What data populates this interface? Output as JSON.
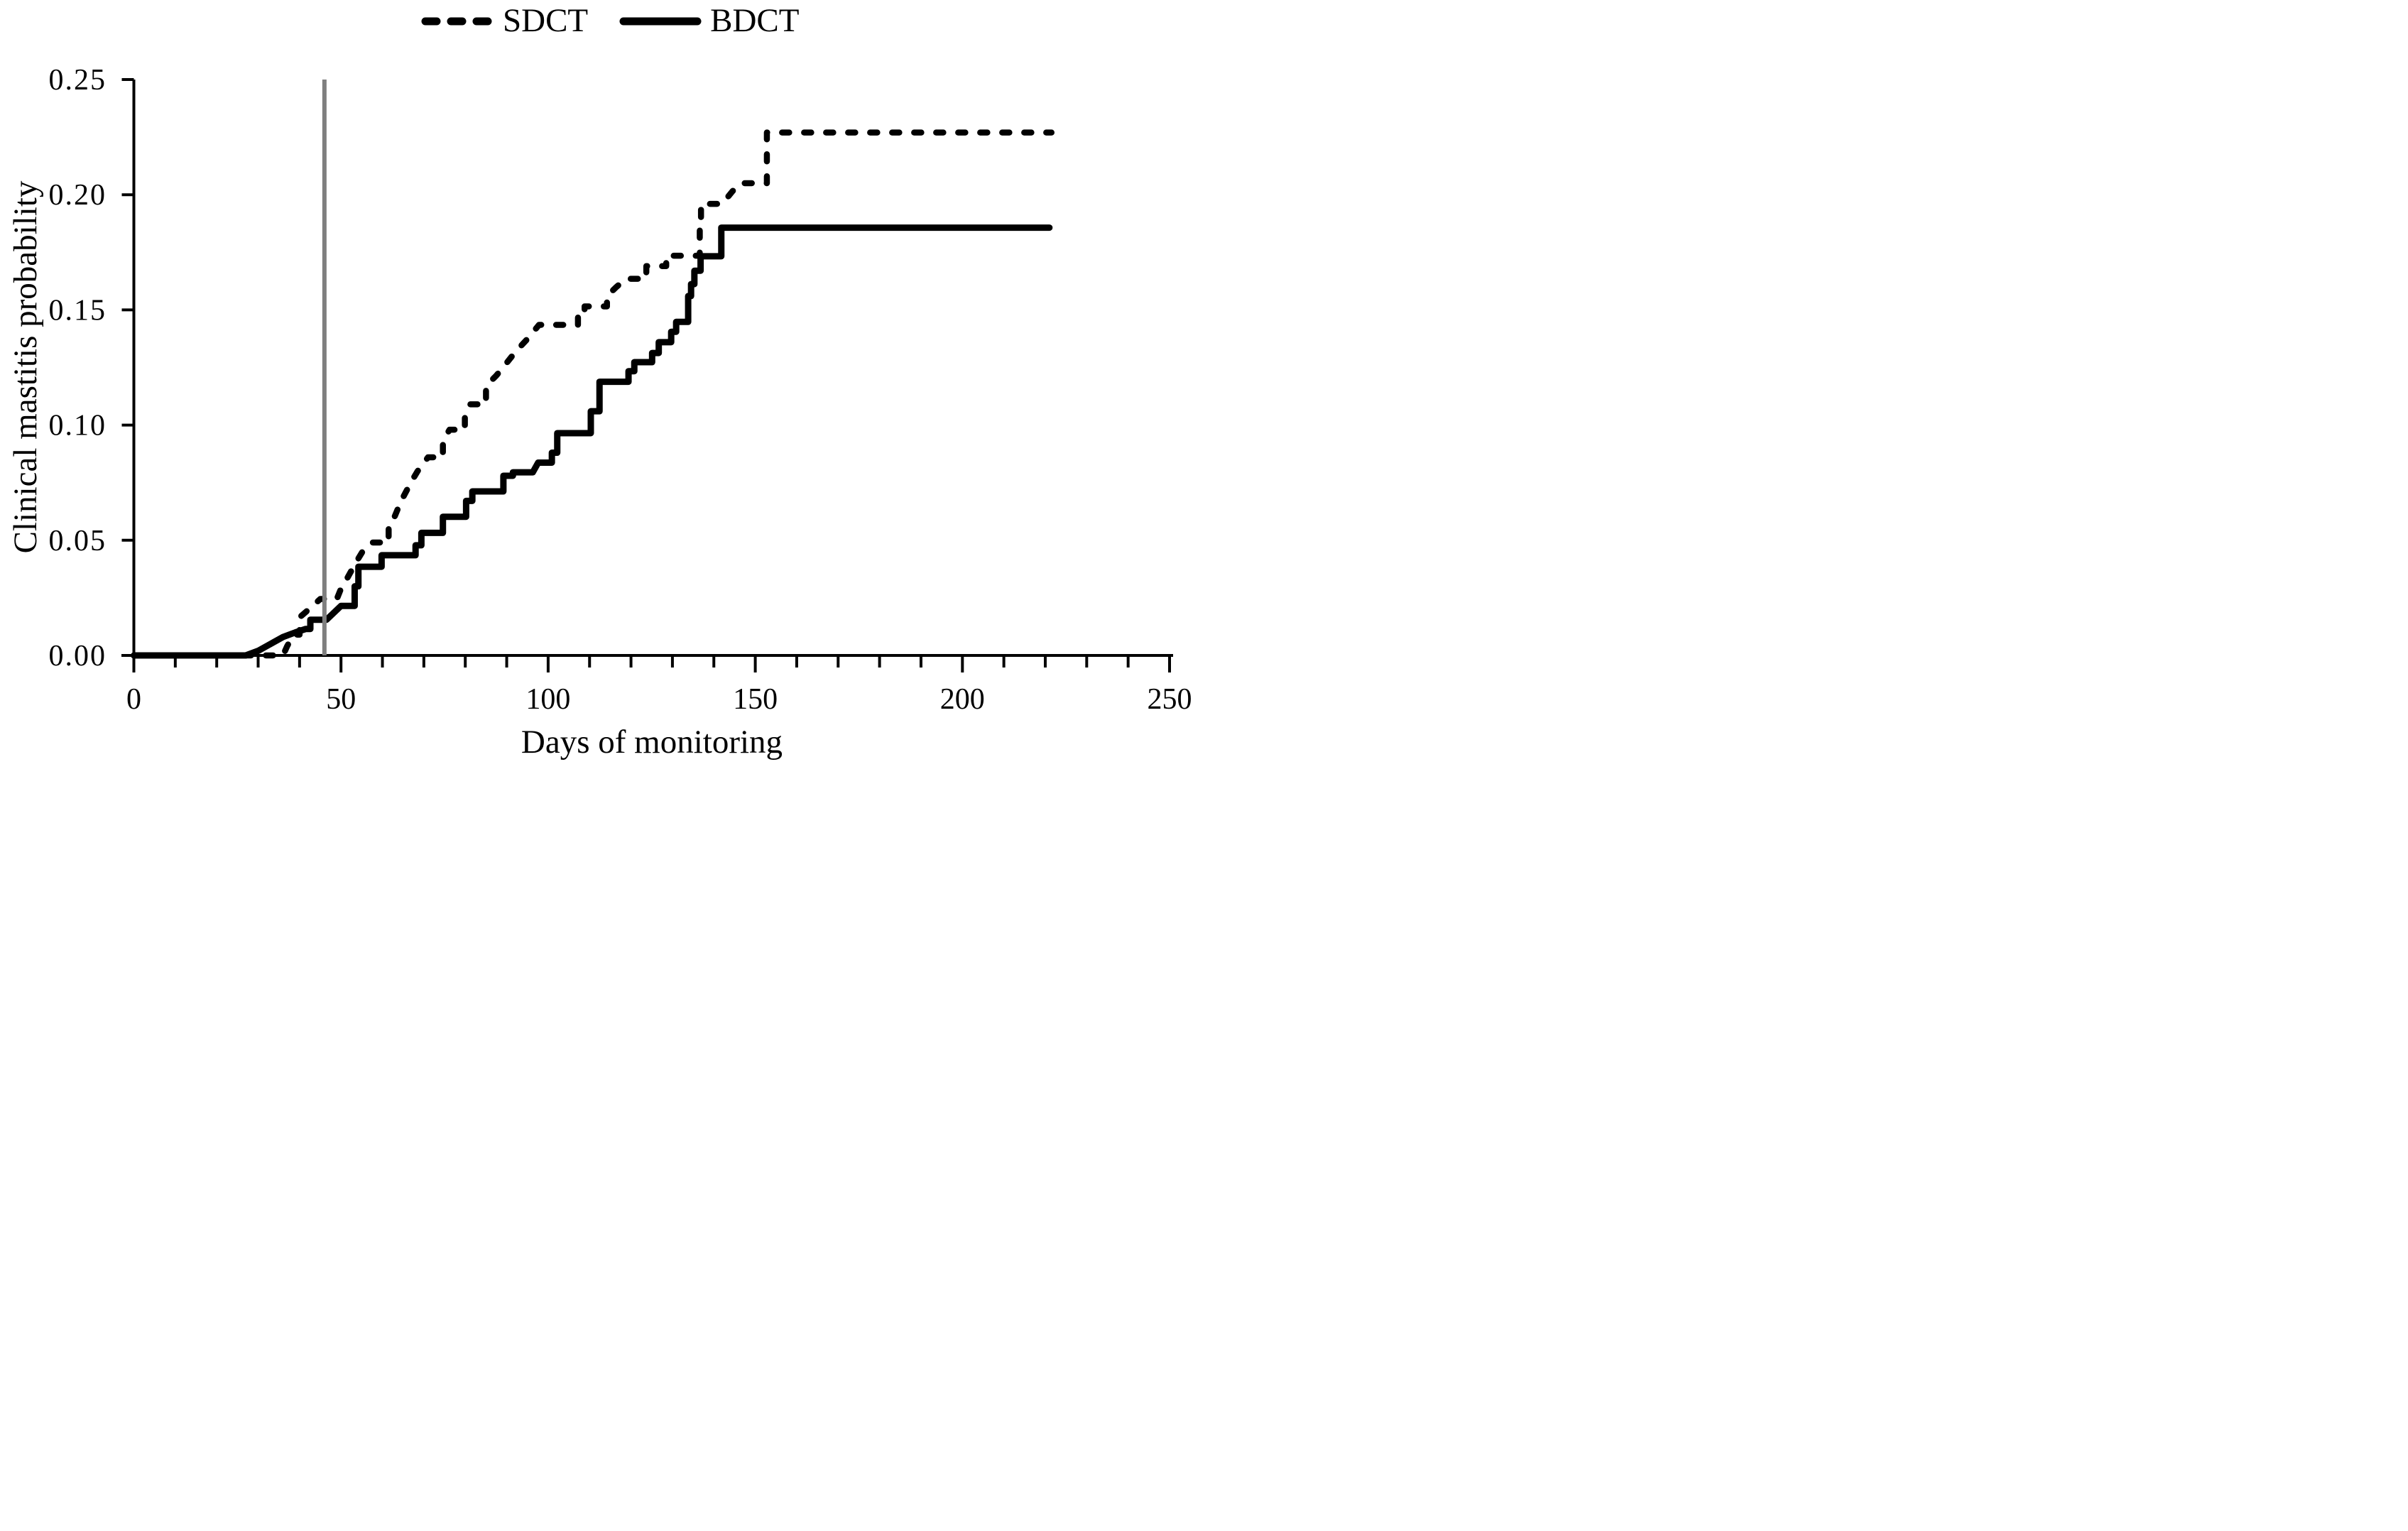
{
  "figure": {
    "background": "#ffffff",
    "curve_color": "#000000"
  },
  "legend": {
    "position": "top-center",
    "items": [
      {
        "label": "SDCT",
        "line_style": "dashed",
        "color": "#000000"
      },
      {
        "label": "BDCT",
        "line_style": "solid",
        "color": "#000000"
      }
    ]
  },
  "axes": {
    "x": {
      "title": "Days of monitoring",
      "min": 0,
      "max": 250,
      "major_ticks": [
        0,
        50,
        100,
        150,
        200,
        250
      ],
      "major_tick_labels": [
        "0",
        "50",
        "100",
        "150",
        "200",
        "250"
      ],
      "minor_tick_step": 10
    },
    "y": {
      "title": "Clinical mastitis probability",
      "min": 0,
      "max": 0.25,
      "tick_labels": [
        "0.00",
        "0.05",
        "0.10",
        "0.15",
        "0.20",
        "0.25"
      ],
      "tick_values": [
        0,
        0.05,
        0.1,
        0.15,
        0.2,
        0.25
      ]
    }
  },
  "chart_data": {
    "type": "line",
    "subtype": "kaplan-meier-cumulative-incidence-step",
    "title": "",
    "xlabel": "Days of monitoring",
    "ylabel": "Clinical mastitis probability",
    "xlim": [
      0,
      250
    ],
    "ylim": [
      0,
      0.25
    ],
    "grid": false,
    "legend_position": "top",
    "vertical_reference_line": {
      "x": 46,
      "color": "#7f7f7f",
      "y_from": 0,
      "y_to": 0.25
    },
    "point_format": "[day, probability, segment_mode] where mode m=moveto, h=step-after, d=diagonal",
    "series": [
      {
        "name": "SDCT",
        "style": "dashed",
        "color": "#000000",
        "final_value": 0.227,
        "end_day": 221,
        "points": [
          [
            0,
            0,
            "m"
          ],
          [
            36,
            0,
            "h"
          ],
          [
            37,
            0.004,
            "d"
          ],
          [
            38.5,
            0.009,
            "d"
          ],
          [
            40,
            0.0165,
            "h"
          ],
          [
            43.5,
            0.022,
            "d"
          ],
          [
            45,
            0.0245,
            "d"
          ],
          [
            49,
            0.0245,
            "h"
          ],
          [
            50,
            0.029,
            "d"
          ],
          [
            51.5,
            0.0335,
            "d"
          ],
          [
            53.5,
            0.04,
            "d"
          ],
          [
            55.5,
            0.046,
            "d"
          ],
          [
            57.5,
            0.049,
            "d"
          ],
          [
            60.5,
            0.049,
            "h"
          ],
          [
            61.5,
            0.0565,
            "h"
          ],
          [
            63,
            0.0605,
            "d"
          ],
          [
            64.5,
            0.067,
            "d"
          ],
          [
            67,
            0.0755,
            "d"
          ],
          [
            68.5,
            0.08,
            "d"
          ],
          [
            71,
            0.086,
            "d"
          ],
          [
            74,
            0.086,
            "h"
          ],
          [
            74.6,
            0.093,
            "h"
          ],
          [
            76.2,
            0.098,
            "d"
          ],
          [
            79.2,
            0.098,
            "h"
          ],
          [
            79.9,
            0.1035,
            "h"
          ],
          [
            81.2,
            0.109,
            "d"
          ],
          [
            84.3,
            0.109,
            "h"
          ],
          [
            85,
            0.117,
            "h"
          ],
          [
            87.5,
            0.1215,
            "d"
          ],
          [
            90,
            0.127,
            "d"
          ],
          [
            92.2,
            0.132,
            "d"
          ],
          [
            94.8,
            0.137,
            "d"
          ],
          [
            97.8,
            0.1435,
            "d"
          ],
          [
            106.3,
            0.1435,
            "h"
          ],
          [
            107.2,
            0.149,
            "h"
          ],
          [
            108.8,
            0.1515,
            "h"
          ],
          [
            113.5,
            0.1515,
            "h"
          ],
          [
            114.2,
            0.156,
            "h"
          ],
          [
            116.5,
            0.16,
            "d"
          ],
          [
            118.8,
            0.1635,
            "d"
          ],
          [
            123,
            0.1635,
            "h"
          ],
          [
            123.7,
            0.169,
            "h"
          ],
          [
            127.8,
            0.169,
            "h"
          ],
          [
            128.5,
            0.1735,
            "h"
          ],
          [
            135.8,
            0.1735,
            "h"
          ],
          [
            136.6,
            0.187,
            "h"
          ],
          [
            136.9,
            0.196,
            "h"
          ],
          [
            142,
            0.196,
            "h"
          ],
          [
            144.5,
            0.2015,
            "d"
          ],
          [
            146.5,
            0.205,
            "d"
          ],
          [
            151.8,
            0.205,
            "h"
          ],
          [
            152.8,
            0.227,
            "h"
          ],
          [
            221.5,
            0.227,
            "h"
          ]
        ]
      },
      {
        "name": "BDCT",
        "style": "solid",
        "color": "#000000",
        "final_value": 0.186,
        "end_day": 221,
        "points": [
          [
            0,
            0,
            "m"
          ],
          [
            27,
            0,
            "h"
          ],
          [
            30,
            0.002,
            "d"
          ],
          [
            33,
            0.005,
            "d"
          ],
          [
            36,
            0.008,
            "d"
          ],
          [
            39,
            0.01,
            "d"
          ],
          [
            41.5,
            0.0115,
            "d"
          ],
          [
            42.6,
            0.0155,
            "h"
          ],
          [
            46.5,
            0.0155,
            "h"
          ],
          [
            50,
            0.0215,
            "d"
          ],
          [
            53.3,
            0.03,
            "h"
          ],
          [
            54.2,
            0.0385,
            "h"
          ],
          [
            59.8,
            0.0435,
            "h"
          ],
          [
            68,
            0.0478,
            "h"
          ],
          [
            69.4,
            0.0532,
            "h"
          ],
          [
            74.6,
            0.0602,
            "h"
          ],
          [
            80.2,
            0.0671,
            "h"
          ],
          [
            81.7,
            0.0712,
            "h"
          ],
          [
            89.2,
            0.078,
            "h"
          ],
          [
            91.5,
            0.0795,
            "h"
          ],
          [
            96.3,
            0.0795,
            "h"
          ],
          [
            97.6,
            0.0837,
            "d"
          ],
          [
            100.9,
            0.088,
            "h"
          ],
          [
            102.2,
            0.0965,
            "h"
          ],
          [
            110.3,
            0.106,
            "h"
          ],
          [
            112.4,
            0.1188,
            "h"
          ],
          [
            119.4,
            0.1234,
            "h"
          ],
          [
            120.8,
            0.1273,
            "h"
          ],
          [
            125.1,
            0.1313,
            "h"
          ],
          [
            126.7,
            0.136,
            "h"
          ],
          [
            129.7,
            0.1405,
            "h"
          ],
          [
            130.9,
            0.1448,
            "h"
          ],
          [
            133.8,
            0.156,
            "h"
          ],
          [
            134.5,
            0.1612,
            "h"
          ],
          [
            135.3,
            0.167,
            "h"
          ],
          [
            136.8,
            0.1733,
            "h"
          ],
          [
            141.8,
            0.1857,
            "h"
          ],
          [
            221,
            0.1857,
            "h"
          ]
        ]
      }
    ]
  }
}
